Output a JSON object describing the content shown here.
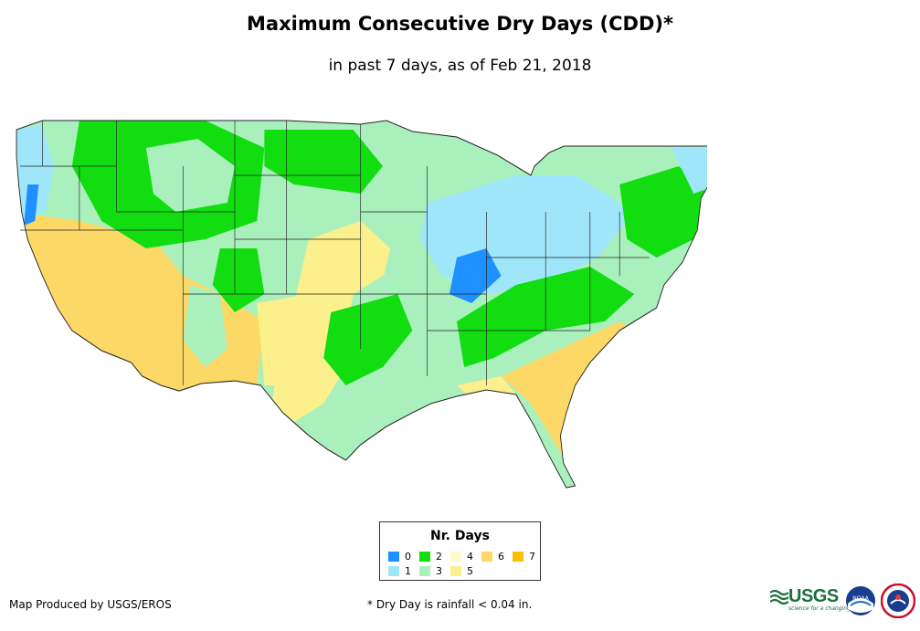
{
  "title": "Maximum Consecutive Dry Days (CDD)*",
  "subtitle": "in past 7 days, as of Feb 21, 2018",
  "legend": {
    "title": "Nr. Days",
    "items": [
      {
        "label": "0",
        "color": "#1e90ff"
      },
      {
        "label": "1",
        "color": "#9fe6fa"
      },
      {
        "label": "2",
        "color": "#11dd11"
      },
      {
        "label": "3",
        "color": "#aaf0bc"
      },
      {
        "label": "4",
        "color": "#fafac8"
      },
      {
        "label": "5",
        "color": "#fcf08c"
      },
      {
        "label": "6",
        "color": "#fcd966"
      },
      {
        "label": "7",
        "color": "#fcc000"
      }
    ]
  },
  "footer": {
    "producer": "Map Produced by USGS/EROS",
    "note": "* Dry Day is rainfall < 0.04 in."
  },
  "logos": {
    "usgs": "USGS",
    "usgs_tagline": "science for a changing world",
    "noaa": "NOAA"
  }
}
